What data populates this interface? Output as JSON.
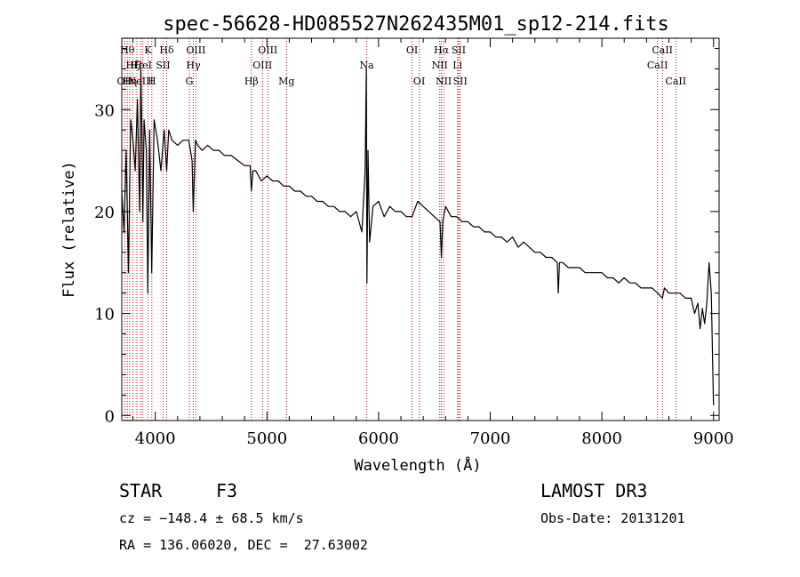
{
  "chart_data": {
    "type": "line",
    "title": "spec-56628-HD085527N262435M01_sp12-214.fits",
    "xlabel": "Wavelength (Å)",
    "ylabel": "Flux (relative)",
    "xlim": [
      3700,
      9050
    ],
    "ylim": [
      -0.5,
      37
    ],
    "x_ticks": [
      4000,
      5000,
      6000,
      7000,
      8000,
      9000
    ],
    "y_ticks": [
      0,
      10,
      20,
      30
    ],
    "line_color": "#000000",
    "marker_color": "#cc0000",
    "series": [
      {
        "name": "flux",
        "x": [
          3700,
          3720,
          3740,
          3760,
          3780,
          3800,
          3820,
          3840,
          3860,
          3870,
          3880,
          3889,
          3900,
          3920,
          3933,
          3950,
          3968,
          3990,
          4020,
          4050,
          4080,
          4102,
          4120,
          4150,
          4200,
          4250,
          4300,
          4330,
          4340,
          4360,
          4380,
          4420,
          4470,
          4520,
          4570,
          4620,
          4680,
          4740,
          4800,
          4850,
          4861,
          4875,
          4900,
          4950,
          5000,
          5050,
          5100,
          5150,
          5200,
          5250,
          5300,
          5350,
          5400,
          5450,
          5500,
          5550,
          5600,
          5650,
          5700,
          5750,
          5800,
          5850,
          5880,
          5890,
          5896,
          5905,
          5920,
          5950,
          6000,
          6050,
          6100,
          6150,
          6200,
          6250,
          6300,
          6350,
          6400,
          6450,
          6500,
          6550,
          6563,
          6575,
          6600,
          6650,
          6700,
          6750,
          6800,
          6850,
          6900,
          6950,
          7000,
          7050,
          7100,
          7150,
          7200,
          7250,
          7300,
          7350,
          7400,
          7450,
          7500,
          7550,
          7600,
          7610,
          7620,
          7650,
          7700,
          7750,
          7800,
          7850,
          7900,
          7950,
          8000,
          8050,
          8100,
          8150,
          8200,
          8250,
          8300,
          8350,
          8400,
          8450,
          8500,
          8542,
          8560,
          8600,
          8662,
          8700,
          8750,
          8800,
          8830,
          8860,
          8880,
          8900,
          8920,
          8940,
          8960,
          8980,
          9000
        ],
        "values": [
          22,
          18,
          26,
          14,
          29,
          27,
          24,
          31,
          20,
          34,
          28,
          19,
          29,
          26,
          12,
          28,
          14,
          29,
          27,
          24,
          28,
          24,
          28,
          27,
          26.5,
          27,
          27,
          25,
          20,
          27,
          26.5,
          26,
          26.5,
          26,
          26,
          25.5,
          25.5,
          25,
          24.5,
          24.5,
          22,
          24,
          24,
          23,
          23.5,
          23,
          23,
          22.5,
          22.5,
          22,
          22,
          21.5,
          21.5,
          21,
          21,
          20.5,
          20.5,
          20,
          20,
          19.5,
          20,
          18,
          24,
          34,
          13,
          26,
          17,
          20.5,
          21,
          19.5,
          20.5,
          20,
          20,
          19.5,
          19.5,
          21,
          20.5,
          20,
          19.5,
          19,
          15.5,
          19,
          20.5,
          19.5,
          19.5,
          19,
          19,
          18.5,
          18.5,
          18,
          18,
          17.5,
          17.5,
          17,
          17.5,
          16.5,
          17,
          16.5,
          16,
          16,
          15.5,
          15.5,
          15,
          12,
          15,
          15,
          14.5,
          14.5,
          14.5,
          14,
          14,
          14,
          14,
          13.5,
          13.5,
          13,
          13.5,
          13,
          13,
          12.5,
          12.5,
          12.5,
          12,
          11.5,
          12.5,
          12,
          12,
          12,
          11.5,
          11.5,
          10,
          11,
          8.5,
          10.5,
          9,
          11,
          15,
          12,
          1
        ]
      }
    ],
    "spectral_lines": [
      {
        "w": 3727,
        "label": "OII",
        "row": 3
      },
      {
        "w": 3750,
        "label": "Hθ",
        "row": 1
      },
      {
        "w": 3771,
        "label": "Hη",
        "row": 3
      },
      {
        "w": 3798,
        "label": "Hζ",
        "row": 2
      },
      {
        "w": 3835,
        "label": "Hε",
        "row": 2
      },
      {
        "w": 3869,
        "label": "NeIII",
        "row": 3
      },
      {
        "w": 3889,
        "label": "HeI",
        "row": 2
      },
      {
        "w": 3934,
        "label": "K",
        "row": 1
      },
      {
        "w": 3969,
        "label": "H",
        "row": 3
      },
      {
        "w": 4070,
        "label": "SII",
        "row": 2
      },
      {
        "w": 4102,
        "label": "Hδ",
        "row": 1
      },
      {
        "w": 4305,
        "label": "G",
        "row": 3
      },
      {
        "w": 4341,
        "label": "Hγ",
        "row": 2
      },
      {
        "w": 4364,
        "label": "OIII",
        "row": 1
      },
      {
        "w": 4861,
        "label": "Hβ",
        "row": 3
      },
      {
        "w": 4960,
        "label": "OIII",
        "row": 2
      },
      {
        "w": 5008,
        "label": "OIII",
        "row": 1
      },
      {
        "w": 5175,
        "label": "Mg",
        "row": 3
      },
      {
        "w": 5894,
        "label": "Na",
        "row": 2
      },
      {
        "w": 6300,
        "label": "OI",
        "row": 1
      },
      {
        "w": 6364,
        "label": "OI",
        "row": 3
      },
      {
        "w": 6548,
        "label": "NII",
        "row": 2
      },
      {
        "w": 6563,
        "label": "Hα",
        "row": 1
      },
      {
        "w": 6583,
        "label": "NII",
        "row": 3
      },
      {
        "w": 6707,
        "label": "Li",
        "row": 2
      },
      {
        "w": 6717,
        "label": "SII",
        "row": 1
      },
      {
        "w": 6731,
        "label": "SII",
        "row": 3
      },
      {
        "w": 8498,
        "label": "CaII",
        "row": 2
      },
      {
        "w": 8542,
        "label": "CaII",
        "row": 1
      },
      {
        "w": 8662,
        "label": "CaII",
        "row": 3
      }
    ]
  },
  "info": {
    "class": "STAR",
    "subclass": "F3",
    "survey": "LAMOST DR3",
    "cz": "cz = −148.4 ± 68.5 km/s",
    "obs_date": "Obs-Date: 20131201",
    "coords": "RA = 136.06020, DEC =  27.63002"
  }
}
